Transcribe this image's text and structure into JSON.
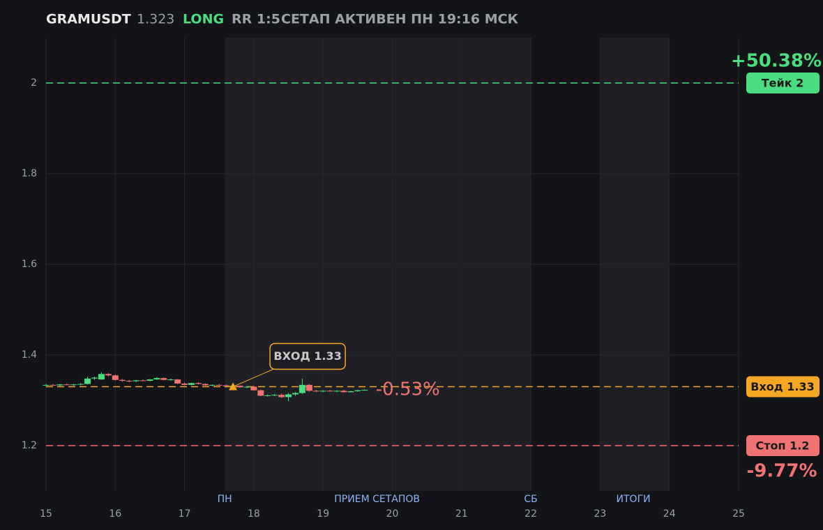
{
  "chart_data": {
    "type": "candlestick",
    "header": {
      "symbol": "GRAMUSDT",
      "price": "1.323",
      "side": "LONG",
      "rr": "RR 1:5",
      "status": "СЕТАП АКТИВЕН ПН 19:16 МСК"
    },
    "xlim": [
      15,
      25
    ],
    "xticks": [
      15,
      16,
      17,
      18,
      19,
      20,
      21,
      22,
      23,
      24,
      25
    ],
    "ylim": [
      1.1,
      2.1
    ],
    "yticks": [
      1.2,
      1.4,
      1.6,
      1.8,
      2
    ],
    "grid": true,
    "up_color": "#4ade80",
    "down_color": "#f07272",
    "zones": [
      {
        "start": 17.58,
        "end": 22
      },
      {
        "start": 23,
        "end": 24
      }
    ],
    "session_labels": [
      {
        "x": 17.58,
        "label": "ПН"
      },
      {
        "x": 19.78,
        "label": "ПРИЕМ СЕТАПОВ"
      },
      {
        "x": 22,
        "label": "СБ"
      },
      {
        "x": 23.48,
        "label": "ИТОГИ"
      }
    ],
    "levels": [
      {
        "label": "Тейк 2",
        "value": 2,
        "color": "#4ade80",
        "change": "+50.38%"
      },
      {
        "label": "Вход 1.33",
        "value": 1.33,
        "color": "#f5a623"
      },
      {
        "label": "Стоп 1.2",
        "value": 1.2,
        "color": "#f07272",
        "change": "-9.77%"
      }
    ],
    "entry": {
      "x": 17.7,
      "price": 1.33,
      "label": "ВХОД 1.33",
      "color": "#f5a623"
    },
    "current_change": "-0.53%",
    "x": [
      15,
      15.1,
      15.2,
      15.3,
      15.4,
      15.5,
      15.6,
      15.7,
      15.8,
      15.9,
      16,
      16.1,
      16.2,
      16.3,
      16.4,
      16.5,
      16.6,
      16.7,
      16.8,
      16.9,
      17,
      17.1,
      17.2,
      17.3,
      17.4,
      17.5,
      17.6,
      17.7,
      17.8,
      17.9,
      18,
      18.1,
      18.2,
      18.3,
      18.4,
      18.5,
      18.6,
      18.7,
      18.8,
      18.9,
      19,
      19.1,
      19.2,
      19.3,
      19.4,
      19.5,
      19.6
    ],
    "open": [
      1.333,
      1.334,
      1.333,
      1.335,
      1.334,
      1.335,
      1.336,
      1.348,
      1.346,
      1.358,
      1.355,
      1.345,
      1.343,
      1.342,
      1.344,
      1.343,
      1.346,
      1.349,
      1.345,
      1.346,
      1.337,
      1.334,
      1.338,
      1.336,
      1.333,
      1.334,
      1.333,
      1.331,
      1.332,
      1.329,
      1.33,
      1.322,
      1.31,
      1.311,
      1.312,
      1.307,
      1.313,
      1.316,
      1.334,
      1.321,
      1.32,
      1.321,
      1.32,
      1.321,
      1.318,
      1.32,
      1.322
    ],
    "high": [
      1.336,
      1.336,
      1.336,
      1.337,
      1.336,
      1.338,
      1.352,
      1.352,
      1.362,
      1.36,
      1.357,
      1.347,
      1.345,
      1.345,
      1.346,
      1.347,
      1.351,
      1.35,
      1.348,
      1.347,
      1.339,
      1.339,
      1.34,
      1.337,
      1.335,
      1.336,
      1.335,
      1.334,
      1.333,
      1.331,
      1.332,
      1.324,
      1.313,
      1.314,
      1.315,
      1.316,
      1.318,
      1.348,
      1.336,
      1.323,
      1.322,
      1.323,
      1.322,
      1.323,
      1.321,
      1.323,
      1.324
    ],
    "low": [
      1.331,
      1.332,
      1.331,
      1.333,
      1.332,
      1.333,
      1.335,
      1.345,
      1.345,
      1.352,
      1.343,
      1.341,
      1.34,
      1.34,
      1.342,
      1.342,
      1.345,
      1.344,
      1.343,
      1.336,
      1.333,
      1.333,
      1.335,
      1.332,
      1.331,
      1.332,
      1.33,
      1.329,
      1.328,
      1.327,
      1.321,
      1.309,
      1.308,
      1.309,
      1.305,
      1.298,
      1.31,
      1.314,
      1.319,
      1.318,
      1.318,
      1.319,
      1.318,
      1.317,
      1.317,
      1.319,
      1.321
    ],
    "close": [
      1.334,
      1.333,
      1.335,
      1.334,
      1.335,
      1.336,
      1.348,
      1.35,
      1.358,
      1.355,
      1.345,
      1.343,
      1.342,
      1.344,
      1.343,
      1.346,
      1.349,
      1.345,
      1.346,
      1.337,
      1.334,
      1.338,
      1.336,
      1.333,
      1.334,
      1.333,
      1.331,
      1.332,
      1.329,
      1.33,
      1.322,
      1.31,
      1.311,
      1.312,
      1.307,
      1.313,
      1.316,
      1.334,
      1.321,
      1.32,
      1.321,
      1.32,
      1.321,
      1.318,
      1.32,
      1.322,
      1.323
    ]
  }
}
